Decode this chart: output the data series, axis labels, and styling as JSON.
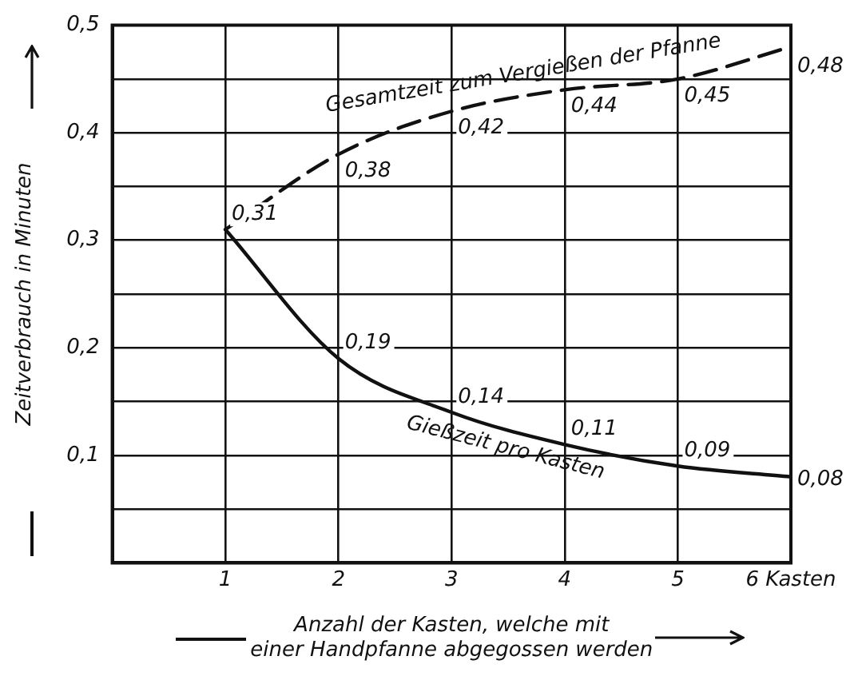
{
  "chart_data": {
    "type": "line",
    "xlabel": "Anzahl der Kasten, welche mit einer Handpfanne abgegossen werden",
    "ylabel": "Zeitverbrauch in Minuten",
    "x": [
      1,
      2,
      3,
      4,
      5,
      6
    ],
    "series": [
      {
        "name": "Gesamtzeit zum Vergießen der Pfanne",
        "color": "#111111",
        "line_style": "dashed",
        "values": [
          0.31,
          0.38,
          0.42,
          0.44,
          0.45,
          0.48
        ],
        "value_labels": [
          null,
          "0,38",
          "0,42",
          "0,44",
          "0,45",
          "0,48"
        ]
      },
      {
        "name": "Gießzeit pro Kasten",
        "color": "#111111",
        "line_style": "solid",
        "values": [
          0.31,
          0.19,
          0.14,
          0.11,
          0.09,
          0.08
        ],
        "value_labels": [
          "0,31",
          "0,19",
          "0,14",
          "0,11",
          "0,09",
          "0,08"
        ]
      }
    ],
    "xlim": [
      0,
      6
    ],
    "xticks": [
      1,
      2,
      3,
      4,
      5,
      {
        "value": 6,
        "label": "6 Kasten"
      }
    ],
    "ylim": [
      0,
      0.5
    ],
    "yticks": [
      {
        "value": 0.05,
        "label": null
      },
      {
        "value": 0.1,
        "label": "0,1"
      },
      {
        "value": 0.15,
        "label": null
      },
      {
        "value": 0.2,
        "label": "0,2"
      },
      {
        "value": 0.25,
        "label": null
      },
      {
        "value": 0.3,
        "label": "0,3"
      },
      {
        "value": 0.35,
        "label": null
      },
      {
        "value": 0.4,
        "label": "0,4"
      },
      {
        "value": 0.45,
        "label": null
      },
      {
        "value": 0.5,
        "label": "0,5"
      }
    ],
    "grid": true,
    "legend": false,
    "marker": "none"
  }
}
